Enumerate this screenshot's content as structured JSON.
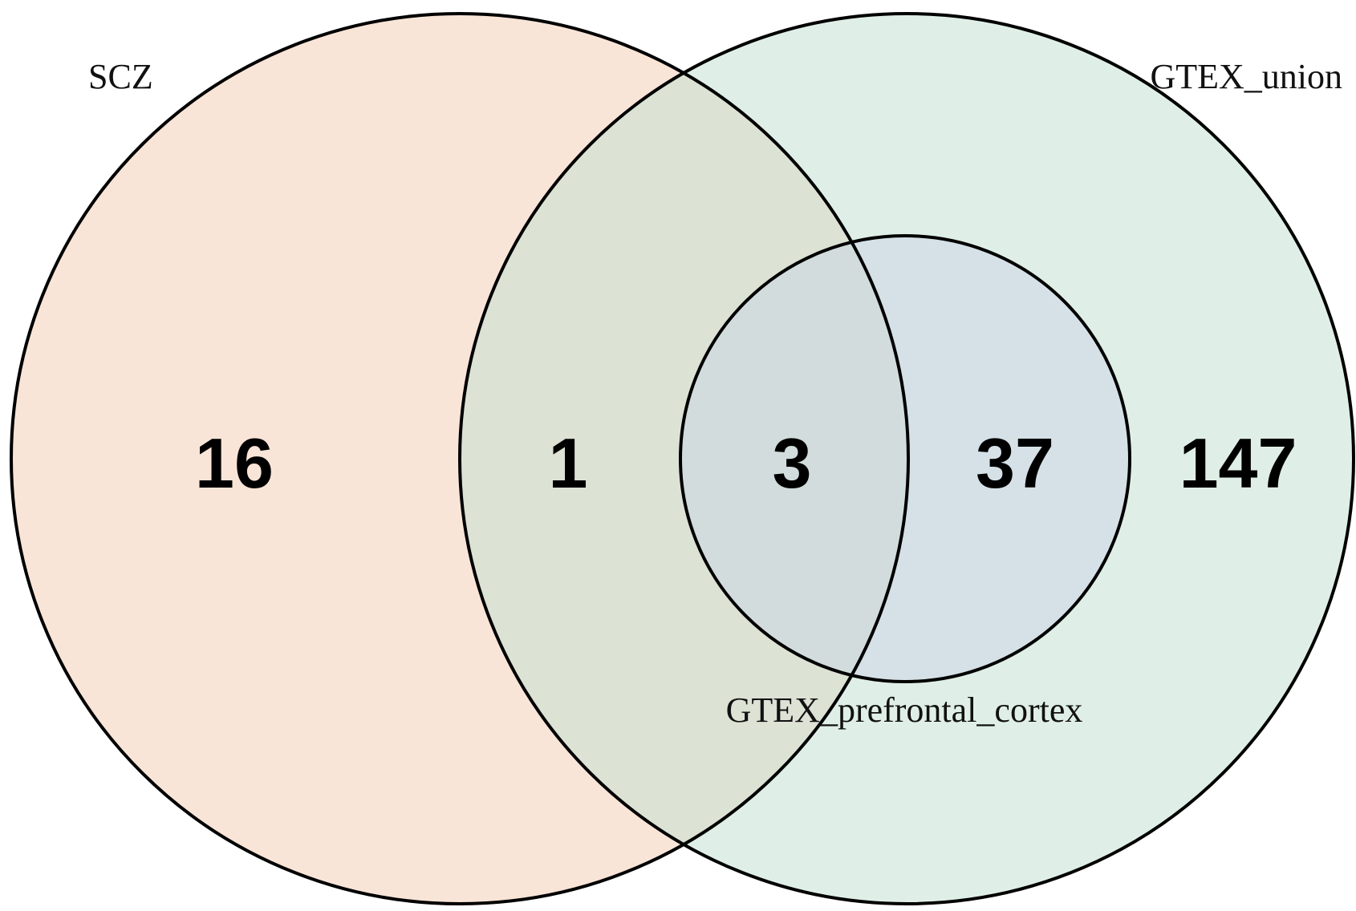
{
  "diagram": {
    "type": "venn",
    "sets": [
      {
        "id": "scz",
        "label": "SCZ",
        "color": "#F9E5D8"
      },
      {
        "id": "union",
        "label": "GTEX_union",
        "color": "#DFEFE7"
      },
      {
        "id": "pfc",
        "label": "GTEX_prefrontal_cortex",
        "color": "#D5E1E6"
      }
    ],
    "overlap_colors": {
      "scz_union": "#DCE2D4",
      "scz_union_pfc": "#D2DCDD"
    },
    "regions": [
      {
        "id": "scz_only",
        "sets": [
          "SCZ"
        ],
        "count": "16"
      },
      {
        "id": "scz_union_only",
        "sets": [
          "SCZ",
          "GTEX_union"
        ],
        "count": "1"
      },
      {
        "id": "scz_union_pfc",
        "sets": [
          "SCZ",
          "GTEX_union",
          "GTEX_prefrontal_cortex"
        ],
        "count": "3"
      },
      {
        "id": "union_pfc_only",
        "sets": [
          "GTEX_union",
          "GTEX_prefrontal_cortex"
        ],
        "count": "37"
      },
      {
        "id": "union_only",
        "sets": [
          "GTEX_union"
        ],
        "count": "147"
      }
    ]
  }
}
